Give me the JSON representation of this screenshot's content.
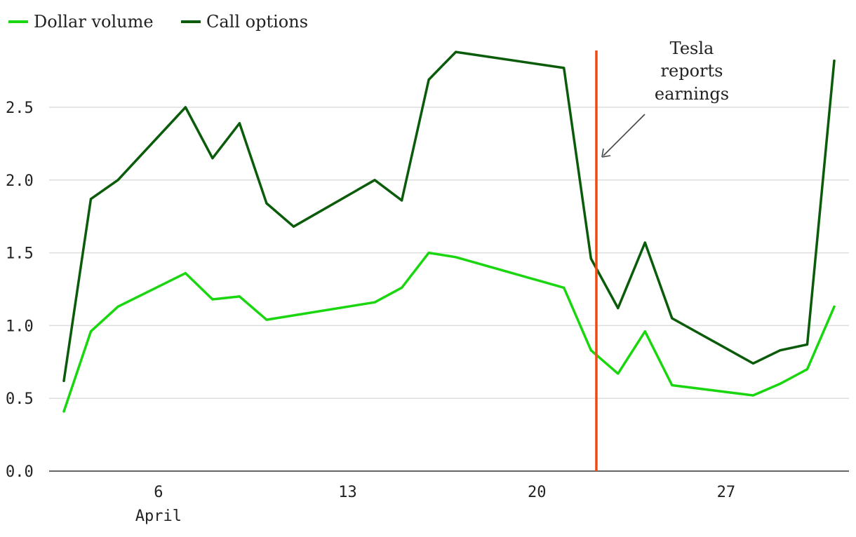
{
  "colors": {
    "dollar_volume": "#19d60f",
    "call_options": "#0a5c0a",
    "event_line": "#f04a12",
    "arrow": "#444444"
  },
  "legend": {
    "items": [
      {
        "label": "Dollar volume",
        "color": "#19d60f"
      },
      {
        "label": "Call options",
        "color": "#0a5c0a"
      }
    ]
  },
  "annotation": {
    "lines": [
      "Tesla",
      "reports",
      "earnings"
    ],
    "day": 22.2
  },
  "chart_data": {
    "type": "line",
    "title": "",
    "xlabel": "",
    "ylabel": "",
    "ylim": [
      0,
      2.9
    ],
    "xlim": [
      2.2,
      31.3
    ],
    "y_ticks": [
      {
        "value": 0,
        "label": "0.0"
      },
      {
        "value": 0.5,
        "label": "0.5"
      },
      {
        "value": 1.0,
        "label": "1.0"
      },
      {
        "value": 1.5,
        "label": "1.5"
      },
      {
        "value": 2.0,
        "label": "2.0"
      },
      {
        "value": 2.5,
        "label": "2.5"
      }
    ],
    "x_ticks": [
      {
        "value": 6,
        "label": "6",
        "sublabel": "April"
      },
      {
        "value": 13,
        "label": "13",
        "sublabel": ""
      },
      {
        "value": 20,
        "label": "20",
        "sublabel": ""
      },
      {
        "value": 27,
        "label": "27",
        "sublabel": ""
      }
    ],
    "grid": true,
    "legend_position": "top-left",
    "series": [
      {
        "name": "Dollar volume",
        "color": "#19d60f",
        "points": [
          [
            2.5,
            0.41
          ],
          [
            3.5,
            0.96
          ],
          [
            4.5,
            1.13
          ],
          [
            7.0,
            1.36
          ],
          [
            8.0,
            1.18
          ],
          [
            9.0,
            1.2
          ],
          [
            10.0,
            1.04
          ],
          [
            14.0,
            1.16
          ],
          [
            15.0,
            1.26
          ],
          [
            16.0,
            1.5
          ],
          [
            17.0,
            1.47
          ],
          [
            21.0,
            1.26
          ],
          [
            22.0,
            0.83
          ],
          [
            23.0,
            0.67
          ],
          [
            24.0,
            0.96
          ],
          [
            25.0,
            0.59
          ],
          [
            28.0,
            0.52
          ],
          [
            29.0,
            0.6
          ],
          [
            30.0,
            0.7
          ],
          [
            31.0,
            1.13
          ]
        ]
      },
      {
        "name": "Call options",
        "color": "#0a5c0a",
        "points": [
          [
            2.5,
            0.62
          ],
          [
            3.5,
            1.87
          ],
          [
            4.5,
            2.0
          ],
          [
            7.0,
            2.5
          ],
          [
            8.0,
            2.15
          ],
          [
            9.0,
            2.39
          ],
          [
            10.0,
            1.84
          ],
          [
            11.0,
            1.68
          ],
          [
            14.0,
            2.0
          ],
          [
            15.0,
            1.86
          ],
          [
            16.0,
            2.69
          ],
          [
            17.0,
            2.88
          ],
          [
            21.0,
            2.77
          ],
          [
            22.0,
            1.46
          ],
          [
            23.0,
            1.12
          ],
          [
            24.0,
            1.57
          ],
          [
            25.0,
            1.05
          ],
          [
            28.0,
            0.74
          ],
          [
            29.0,
            0.83
          ],
          [
            30.0,
            0.87
          ],
          [
            31.0,
            2.82
          ]
        ]
      }
    ]
  }
}
